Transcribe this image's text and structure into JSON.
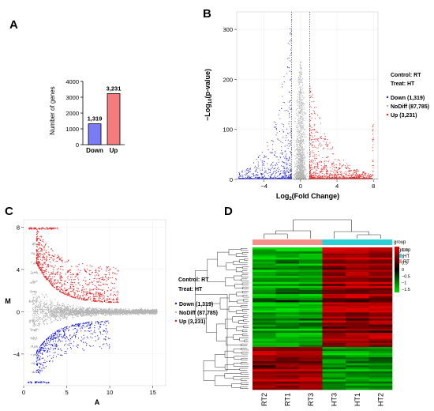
{
  "panels": {
    "A": {
      "letter": "A",
      "chart_data": {
        "type": "bar",
        "categories": [
          "Down",
          "Up"
        ],
        "values": [
          1319,
          3231
        ],
        "value_labels": [
          "1,319",
          "3,231"
        ],
        "ylabel": "Number of genes",
        "ylim": [
          0,
          4000
        ],
        "yticks": [
          0,
          1000,
          2000,
          3000,
          4000
        ],
        "colors": [
          "#7b7cf5",
          "#f47c7c"
        ]
      }
    },
    "B": {
      "letter": "B",
      "chart_data": {
        "type": "scatter",
        "xlabel_main": "Log",
        "xlabel_sub": "2",
        "xlabel_tail": "(Fold Change)",
        "ylabel_main": "−Log",
        "ylabel_sub": "10",
        "ylabel_tail": "(p-value)",
        "xlim": [
          -7,
          8.5
        ],
        "ylim": [
          0,
          335
        ],
        "xticks": [
          -4,
          0,
          4,
          8
        ],
        "yticks": [
          0,
          100,
          200,
          300
        ],
        "thresholds": {
          "log2fc": [
            -1,
            1
          ],
          "neglog10p": 1.3
        },
        "series": [
          {
            "name": "Down (1,319)",
            "color": "#2020e0",
            "count": 1319
          },
          {
            "name": "NoDiff (87,785)",
            "color": "#b5b5b5",
            "count": 87785
          },
          {
            "name": "Up (3,231)",
            "color": "#e62020",
            "count": 3231
          }
        ],
        "legend": {
          "control": "Control: RT",
          "treat": "Treat: HT",
          "placement": "right"
        }
      }
    },
    "C": {
      "letter": "C",
      "chart_data": {
        "type": "scatter",
        "xlabel": "A",
        "ylabel": "M",
        "xlim": [
          0,
          16.5
        ],
        "ylim": [
          -7,
          8.7
        ],
        "xticks": [
          0,
          5,
          10,
          15
        ],
        "yticks": [
          -4,
          0,
          4,
          8
        ],
        "series": [
          {
            "name": "Down (1,319)",
            "color": "#2020e0"
          },
          {
            "name": "NoDiff (87,785)",
            "color": "#b5b5b5"
          },
          {
            "name": "Up (3,231)",
            "color": "#e62020"
          }
        ],
        "legend": {
          "control": "Control: RT",
          "treat": "Treat: HT",
          "placement": "right"
        }
      }
    },
    "D": {
      "letter": "D",
      "chart_data": {
        "type": "heatmap",
        "columns": [
          "RT2",
          "RT1",
          "RT3",
          "HT3",
          "HT1",
          "HT2"
        ],
        "column_groups": [
          "RT",
          "RT",
          "RT",
          "HT",
          "HT",
          "HT"
        ],
        "group_colors": {
          "HT": "#2ccfd8",
          "RT": "#f2928a"
        },
        "group_legend_title": "group",
        "group_legend_items": [
          "HT",
          "RT"
        ],
        "annotation_label": "group",
        "color_scale": {
          "ticks": [
            "1.5",
            "1",
            "0.5",
            "0",
            "−0.5",
            "−1",
            "−1.5"
          ],
          "range": [
            -1.5,
            1.5
          ],
          "low_color": "#00e000",
          "mid_color": "#000000",
          "high_color": "#e00000"
        },
        "row_blocks": [
          {
            "name": "up-in-HT",
            "fraction": 0.7,
            "pattern": [
              -1,
              -1,
              -1,
              1,
              1,
              1
            ]
          },
          {
            "name": "down-in-HT",
            "fraction": 0.3,
            "pattern": [
              1,
              1,
              1,
              -1,
              -1,
              -1
            ]
          }
        ]
      }
    }
  }
}
